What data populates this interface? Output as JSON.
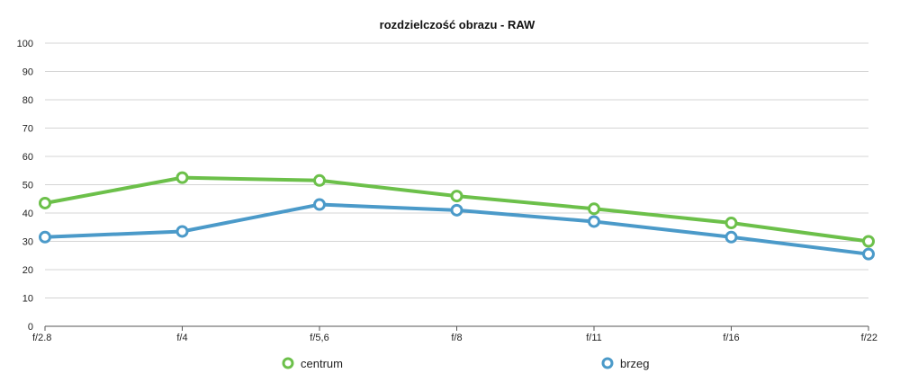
{
  "chart_data": {
    "type": "line",
    "title": "rozdzielczość obrazu - RAW",
    "xlabel": "",
    "ylabel": "",
    "categories": [
      "f/2.8",
      "f/4",
      "f/5,6",
      "f/8",
      "f/11",
      "f/16",
      "f/22"
    ],
    "ylim": [
      0,
      100
    ],
    "yticks": [
      0,
      10,
      20,
      30,
      40,
      50,
      60,
      70,
      80,
      90,
      100
    ],
    "grid": true,
    "legend_position": "bottom",
    "series": [
      {
        "name": "centrum",
        "color": "#6cc04a",
        "values": [
          43.5,
          52.5,
          51.5,
          46,
          41.5,
          36.5,
          30
        ]
      },
      {
        "name": "brzeg",
        "color": "#4b9ac9",
        "values": [
          31.5,
          33.5,
          43,
          41,
          37,
          31.5,
          25.5
        ]
      }
    ]
  }
}
